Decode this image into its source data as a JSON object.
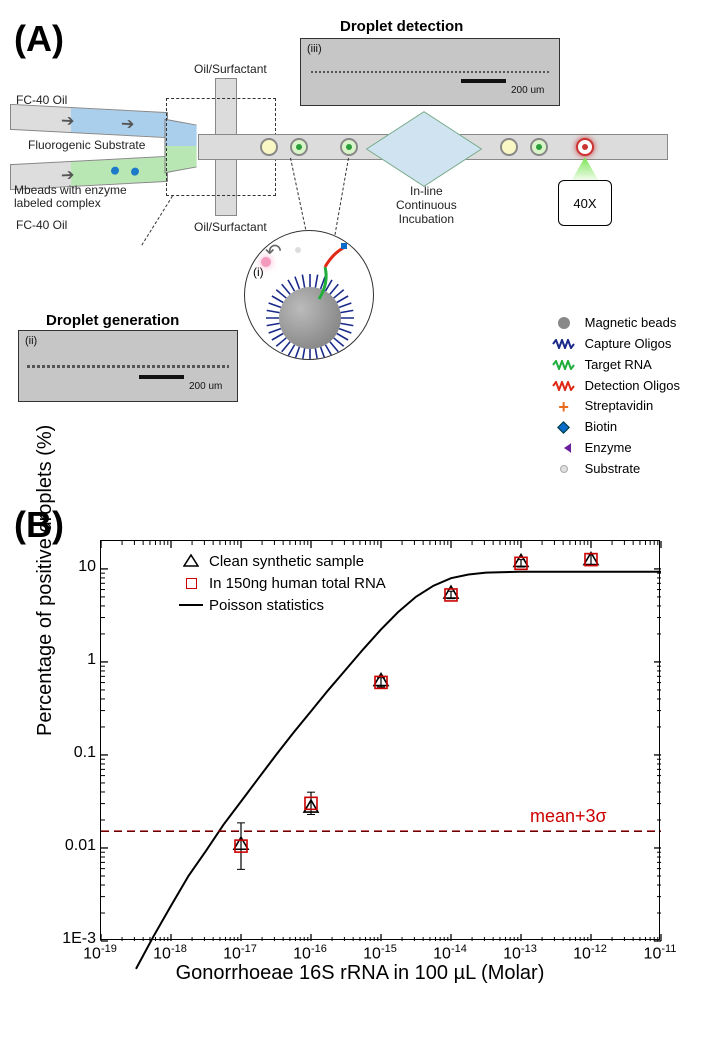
{
  "panelA": {
    "label": "(A)",
    "top_inset": {
      "title": "Droplet detection",
      "roman": "(iii)",
      "scalebar": "200 um"
    },
    "bottom_inset": {
      "title": "Droplet generation",
      "roman": "(ii)",
      "scalebar": "200 um"
    },
    "center_roman": "(i)",
    "inlets": {
      "fc40_top": "FC-40 Oil",
      "fc40_bot": "FC-40 Oil",
      "sub": "Fluorogenic Substrate",
      "beads": "Mbeads with enzyme labeled complex",
      "oil_top": "Oil/Surfactant",
      "oil_bot": "Oil/Surfactant",
      "incub": "In-line\nContinuous\nIncubation",
      "obj": "40X"
    },
    "legend": [
      {
        "label": "Magnetic beads",
        "color": "#888888",
        "shape": "circle"
      },
      {
        "label": "Capture Oligos",
        "color": "#1a2a8a",
        "shape": "zigzag"
      },
      {
        "label": "Target RNA",
        "color": "#1fae3a",
        "shape": "zigzag"
      },
      {
        "label": "Detection Oligos",
        "color": "#e02a18",
        "shape": "zigzag"
      },
      {
        "label": "Streptavidin",
        "color": "#e86b1e",
        "shape": "plus"
      },
      {
        "label": "Biotin",
        "color": "#0a6cc9",
        "shape": "diamond"
      },
      {
        "label": "Enzyme",
        "color": "#6a1e9c",
        "shape": "pac"
      },
      {
        "label": "Substrate",
        "color": "#e0e0e0",
        "shape": "dot"
      }
    ]
  },
  "panelB": {
    "label": "(B)",
    "ylabel": "Percentage of positive droplets (%)",
    "xlabel": "Gonorrhoeae 16S rRNA in 100 µL (Molar)",
    "x_range_exp": [
      -19,
      -11
    ],
    "y_range_exp": [
      -3,
      1.3
    ],
    "x_ticks_exp": [
      -19,
      -18,
      -17,
      -16,
      -15,
      -14,
      -13,
      -12,
      -11
    ],
    "y_ticks": [
      {
        "exp": -3,
        "label": "1E-3"
      },
      {
        "exp": -2,
        "label": "0.01"
      },
      {
        "exp": -1,
        "label": "0.1"
      },
      {
        "exp": 0,
        "label": "1"
      },
      {
        "exp": 1,
        "label": "10"
      }
    ],
    "threshold_exp": -1.82,
    "threshold_label": "mean+3σ",
    "threshold_label_color": "#cc0000",
    "legend": [
      {
        "sym": "triangle",
        "color": "#000000",
        "label": "Clean synthetic sample"
      },
      {
        "sym": "square",
        "color": "#cc0000",
        "label": "In 150ng human total RNA"
      },
      {
        "sym": "line",
        "color": "#000000",
        "label": "Poisson statistics"
      }
    ],
    "series_clean": {
      "marker": "triangle",
      "color": "#000000",
      "points": [
        [
          -17,
          -1.96
        ],
        [
          -16,
          -1.56
        ],
        [
          -15,
          -0.2
        ],
        [
          -14,
          0.74
        ],
        [
          -13,
          1.08
        ],
        [
          -12,
          1.1
        ]
      ]
    },
    "series_rna": {
      "marker": "square",
      "color": "#cc0000",
      "points": [
        [
          -17,
          -1.98
        ],
        [
          -16,
          -1.52
        ],
        [
          -15,
          -0.22
        ],
        [
          -14,
          0.72
        ],
        [
          -13,
          1.06
        ],
        [
          -12,
          1.1
        ]
      ],
      "err": [
        0.25,
        0.12,
        0.05,
        0.04,
        0.04,
        0.06
      ]
    },
    "poisson_curve": [
      [
        -18.5,
        -3.3
      ],
      [
        -18.25,
        -2.95
      ],
      [
        -18.0,
        -2.62
      ],
      [
        -17.75,
        -2.3
      ],
      [
        -17.5,
        -2.03
      ],
      [
        -17.25,
        -1.75
      ],
      [
        -17.0,
        -1.5
      ],
      [
        -16.75,
        -1.25
      ],
      [
        -16.5,
        -1.0
      ],
      [
        -16.25,
        -0.76
      ],
      [
        -16.0,
        -0.53
      ],
      [
        -15.75,
        -0.3
      ],
      [
        -15.5,
        -0.08
      ],
      [
        -15.25,
        0.14
      ],
      [
        -15.0,
        0.35
      ],
      [
        -14.75,
        0.54
      ],
      [
        -14.5,
        0.7
      ],
      [
        -14.25,
        0.82
      ],
      [
        -14.0,
        0.9
      ],
      [
        -13.75,
        0.94
      ],
      [
        -13.5,
        0.96
      ],
      [
        -13.0,
        0.97
      ],
      [
        -12.5,
        0.97
      ],
      [
        -12.0,
        0.97
      ],
      [
        -11.0,
        0.97
      ]
    ],
    "style": {
      "axis_color": "#000000",
      "tick_fontsize": 16,
      "label_fontsize": 20,
      "line_color": "#000000",
      "line_width": 2,
      "threshold_color": "#cc0000"
    }
  }
}
